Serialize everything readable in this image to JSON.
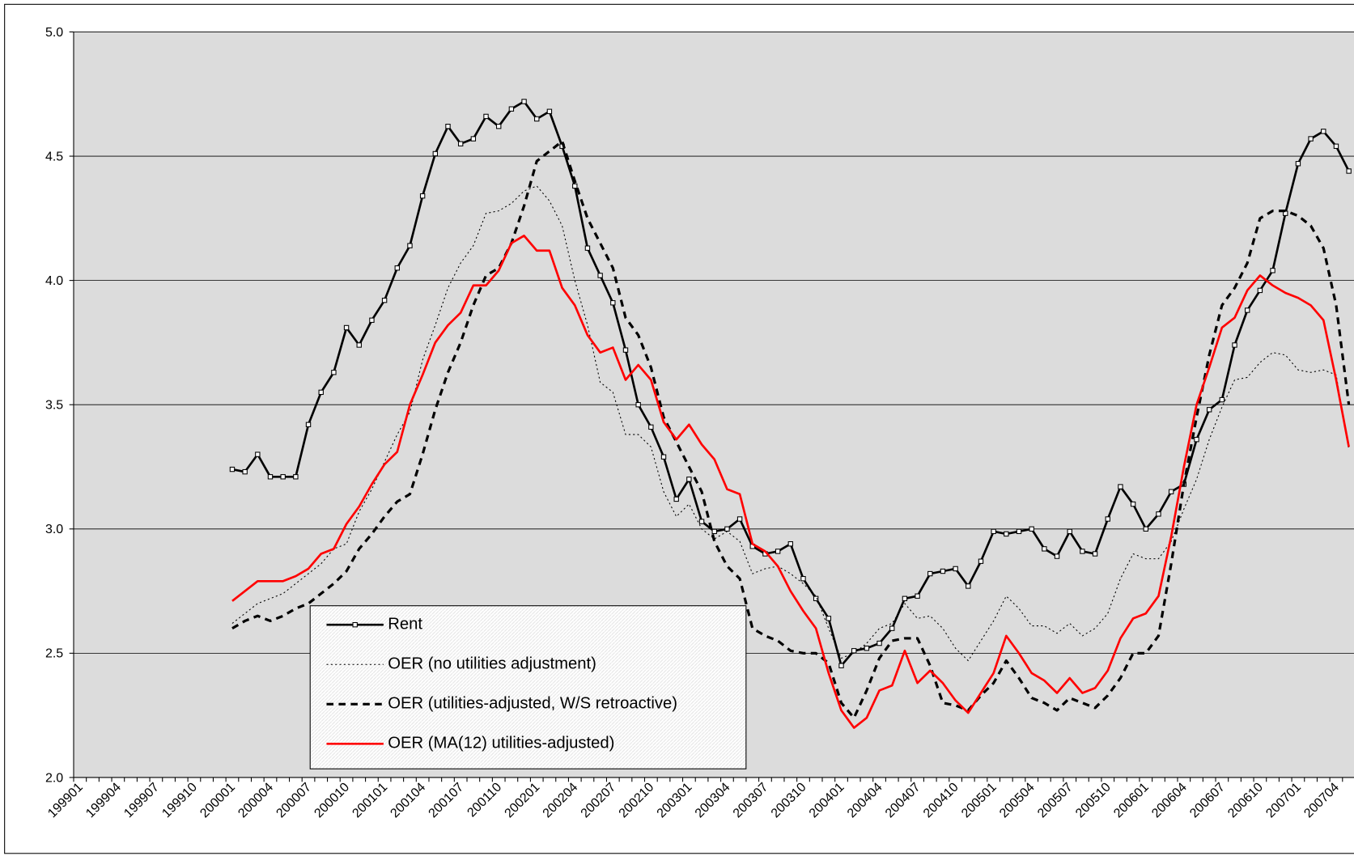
{
  "chart_data": {
    "type": "line",
    "categories": [
      "199901",
      null,
      null,
      "199904",
      null,
      null,
      "199907",
      null,
      null,
      "199910",
      null,
      null,
      "200001",
      null,
      null,
      "200004",
      null,
      null,
      "200007",
      null,
      null,
      "200010",
      null,
      null,
      "200101",
      null,
      null,
      "200104",
      null,
      null,
      "200107",
      null,
      null,
      "200110",
      null,
      null,
      "200201",
      null,
      null,
      "200204",
      null,
      null,
      "200207",
      null,
      null,
      "200210",
      null,
      null,
      "200301",
      null,
      null,
      "200304",
      null,
      null,
      "200307",
      null,
      null,
      "200310",
      null,
      null,
      "200401",
      null,
      null,
      "200404",
      null,
      null,
      "200407",
      null,
      null,
      "200410",
      null,
      null,
      "200501",
      null,
      null,
      "200504",
      null,
      null,
      "200507",
      null,
      null,
      "200510",
      null,
      null,
      "200601",
      null,
      null,
      "200604",
      null,
      null,
      "200607",
      null,
      null,
      "200610",
      null,
      null,
      "200701",
      null,
      null,
      "200704",
      null
    ],
    "ylim": [
      2.0,
      5.0
    ],
    "yticks": [
      {
        "value": 2.0,
        "label": "2.0"
      },
      {
        "value": 2.5,
        "label": "2.5"
      },
      {
        "value": 3.0,
        "label": "3.0"
      },
      {
        "value": 3.5,
        "label": "3.5"
      },
      {
        "value": 4.0,
        "label": "4.0"
      },
      {
        "value": 4.5,
        "label": "4.5"
      },
      {
        "value": 5.0,
        "label": "5.0"
      }
    ],
    "grid": true,
    "legend": "lower-left",
    "series": [
      {
        "name": "Rent",
        "color": "#000000",
        "style": "solid",
        "markers": true,
        "values": [
          null,
          null,
          null,
          null,
          null,
          null,
          null,
          null,
          null,
          null,
          null,
          null,
          3.24,
          3.23,
          3.3,
          3.21,
          3.21,
          3.21,
          3.42,
          3.55,
          3.63,
          3.81,
          3.74,
          3.84,
          3.92,
          4.05,
          4.14,
          4.34,
          4.51,
          4.62,
          4.55,
          4.57,
          4.66,
          4.62,
          4.69,
          4.72,
          4.65,
          4.68,
          4.54,
          4.38,
          4.13,
          4.02,
          3.91,
          3.72,
          3.5,
          3.41,
          3.29,
          3.12,
          3.2,
          3.03,
          2.99,
          3.0,
          3.04,
          2.93,
          2.9,
          2.91,
          2.94,
          2.8,
          2.72,
          2.64,
          2.45,
          2.51,
          2.52,
          2.54,
          2.6,
          2.72,
          2.73,
          2.82,
          2.83,
          2.84,
          2.77,
          2.87,
          2.99,
          2.98,
          2.99,
          3.0,
          2.92,
          2.89,
          2.99,
          2.91,
          2.9,
          3.04,
          3.17,
          3.1,
          3.0,
          3.06,
          3.15,
          3.18,
          3.36,
          3.48,
          3.52,
          3.74,
          3.88,
          3.96,
          4.04,
          4.27,
          4.47,
          4.57,
          4.6,
          4.54,
          4.44
        ]
      },
      {
        "name": "OER (no utilities adjustment)",
        "color": "#000000",
        "style": "dotted",
        "markers": false,
        "values": [
          null,
          null,
          null,
          null,
          null,
          null,
          null,
          null,
          null,
          null,
          null,
          null,
          2.62,
          2.66,
          2.7,
          2.72,
          2.74,
          2.78,
          2.82,
          2.86,
          2.92,
          2.94,
          3.07,
          3.16,
          3.27,
          3.38,
          3.47,
          3.68,
          3.82,
          3.97,
          4.07,
          4.14,
          4.27,
          4.28,
          4.31,
          4.36,
          4.38,
          4.32,
          4.22,
          4.0,
          3.82,
          3.59,
          3.55,
          3.38,
          3.38,
          3.33,
          3.15,
          3.05,
          3.1,
          3.0,
          2.96,
          2.99,
          2.95,
          2.82,
          2.84,
          2.85,
          2.82,
          2.78,
          2.73,
          2.6,
          2.48,
          2.5,
          2.54,
          2.6,
          2.62,
          2.7,
          2.64,
          2.65,
          2.6,
          2.52,
          2.47,
          2.55,
          2.63,
          2.73,
          2.68,
          2.61,
          2.61,
          2.58,
          2.62,
          2.57,
          2.6,
          2.66,
          2.8,
          2.9,
          2.88,
          2.88,
          2.95,
          3.08,
          3.2,
          3.36,
          3.49,
          3.6,
          3.61,
          3.67,
          3.71,
          3.7,
          3.64,
          3.63,
          3.64,
          3.62,
          3.32
        ]
      },
      {
        "name": "OER (utilities-adjusted, W/S retroactive)",
        "color": "#000000",
        "style": "dashed",
        "markers": false,
        "values": [
          null,
          null,
          null,
          null,
          null,
          null,
          null,
          null,
          null,
          null,
          null,
          null,
          2.6,
          2.63,
          2.65,
          2.63,
          2.65,
          2.68,
          2.7,
          2.74,
          2.78,
          2.83,
          2.92,
          2.98,
          3.05,
          3.11,
          3.14,
          3.3,
          3.48,
          3.63,
          3.75,
          3.9,
          4.02,
          4.05,
          4.15,
          4.3,
          4.48,
          4.52,
          4.56,
          4.4,
          4.25,
          4.15,
          4.05,
          3.85,
          3.78,
          3.65,
          3.45,
          3.35,
          3.25,
          3.15,
          2.95,
          2.85,
          2.8,
          2.6,
          2.57,
          2.55,
          2.51,
          2.5,
          2.5,
          2.46,
          2.3,
          2.24,
          2.35,
          2.48,
          2.55,
          2.56,
          2.56,
          2.45,
          2.3,
          2.29,
          2.27,
          2.33,
          2.38,
          2.47,
          2.4,
          2.32,
          2.3,
          2.27,
          2.32,
          2.3,
          2.28,
          2.33,
          2.4,
          2.5,
          2.5,
          2.57,
          2.86,
          3.18,
          3.45,
          3.7,
          3.9,
          3.97,
          4.07,
          4.25,
          4.28,
          4.28,
          4.26,
          4.22,
          4.13,
          3.9,
          3.5
        ]
      },
      {
        "name": "OER (MA(12) utilities-adjusted)",
        "color": "#ff0000",
        "style": "solid",
        "markers": false,
        "values": [
          null,
          null,
          null,
          null,
          null,
          null,
          null,
          null,
          null,
          null,
          null,
          null,
          2.71,
          2.75,
          2.79,
          2.79,
          2.79,
          2.81,
          2.84,
          2.9,
          2.92,
          3.02,
          3.09,
          3.18,
          3.26,
          3.31,
          3.5,
          3.62,
          3.75,
          3.82,
          3.87,
          3.98,
          3.98,
          4.04,
          4.15,
          4.18,
          4.12,
          4.12,
          3.97,
          3.9,
          3.78,
          3.71,
          3.73,
          3.6,
          3.66,
          3.6,
          3.43,
          3.36,
          3.42,
          3.34,
          3.28,
          3.16,
          3.14,
          2.94,
          2.91,
          2.85,
          2.75,
          2.67,
          2.6,
          2.42,
          2.27,
          2.2,
          2.24,
          2.35,
          2.37,
          2.51,
          2.38,
          2.43,
          2.38,
          2.31,
          2.26,
          2.34,
          2.42,
          2.57,
          2.5,
          2.42,
          2.39,
          2.34,
          2.4,
          2.34,
          2.36,
          2.43,
          2.56,
          2.64,
          2.66,
          2.73,
          2.97,
          3.25,
          3.5,
          3.65,
          3.81,
          3.85,
          3.96,
          4.02,
          3.98,
          3.95,
          3.93,
          3.9,
          3.84,
          3.6,
          3.33
        ]
      }
    ]
  }
}
